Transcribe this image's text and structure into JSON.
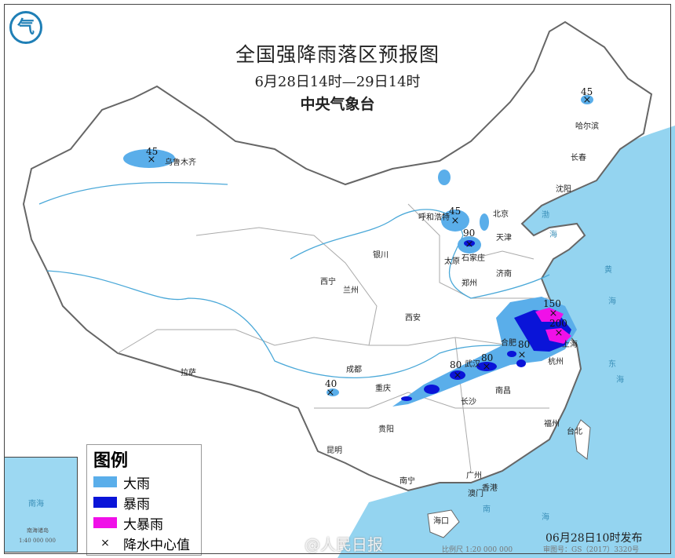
{
  "header": {
    "title": "全国强降雨落区预报图",
    "period": "6月28日14时—29日14时",
    "issuer": "中央气象台"
  },
  "legend": {
    "title": "图例",
    "items": [
      {
        "label": "大雨",
        "color": "#5aaeea"
      },
      {
        "label": "暴雨",
        "color": "#0a14d8"
      },
      {
        "label": "大暴雨",
        "color": "#f010e8"
      },
      {
        "label": "降水中心值",
        "symbol": "×"
      }
    ]
  },
  "colors": {
    "sea": "#94d4f0",
    "land": "#ffffff",
    "border": "#777777"
  },
  "cities": [
    "乌鲁木齐",
    "哈尔滨",
    "长春",
    "沈阳",
    "北京",
    "天津",
    "呼和浩特",
    "石家庄",
    "太原",
    "济南",
    "银川",
    "西宁",
    "兰州",
    "郑州",
    "西安",
    "合肥",
    "武汉",
    "上海",
    "杭州",
    "成都",
    "重庆",
    "南昌",
    "长沙",
    "贵阳",
    "昆明",
    "拉萨",
    "南宁",
    "广州",
    "香港",
    "澳门",
    "福州",
    "台北",
    "海口"
  ],
  "rain_centers": [
    "45",
    "45",
    "45",
    "90",
    "40",
    "80",
    "80",
    "80",
    "150",
    "200"
  ],
  "sea_labels": [
    "渤",
    "海",
    "黄",
    "海",
    "东",
    "海",
    "南",
    "海"
  ],
  "inset": {
    "sea_label": "南海",
    "islands": "南海诸岛",
    "scale": "1:40 000 000"
  },
  "footer": {
    "issued": "06月28日10时发布",
    "scale": "比例尺 1:20 000 000",
    "map_number": "审图号：GS（2017）3320号",
    "watermark": "@人民日报"
  },
  "logo": {
    "glyph": "气"
  }
}
